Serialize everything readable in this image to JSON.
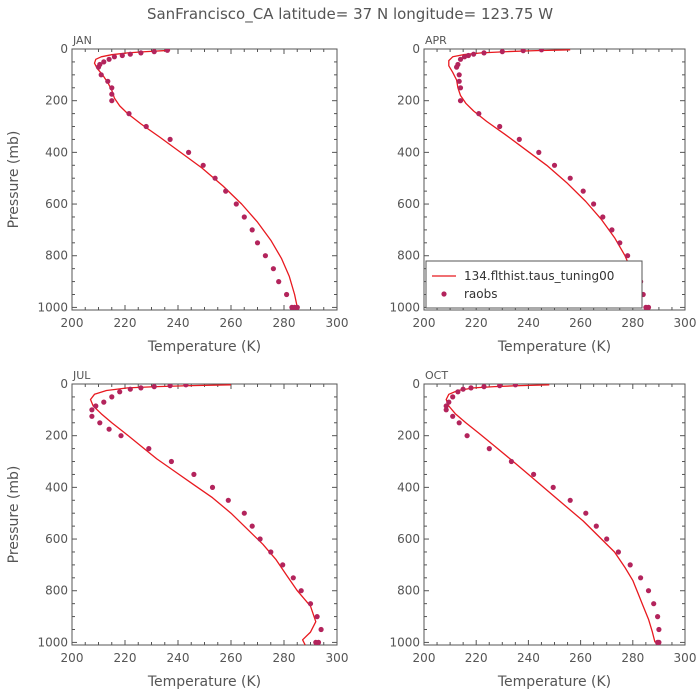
{
  "title": "SanFrancisco_CA  latitude= 37 N longitude= 123.75 W",
  "colors": {
    "model": "#e8191f",
    "obs": "#b3245c",
    "axis": "#555555"
  },
  "legend": {
    "model_label": "134.flthist.taus_tuning00",
    "obs_label": "raobs"
  },
  "chart_data": [
    {
      "type": "line",
      "panel_label": "JAN",
      "xlabel": "Temperature (K)",
      "ylabel": "Pressure (mb)",
      "xlim": [
        200,
        300
      ],
      "ylim": [
        1010,
        0
      ],
      "xticks": [
        200,
        220,
        240,
        260,
        280,
        300
      ],
      "yticks": [
        0,
        200,
        400,
        600,
        800,
        1000
      ],
      "series": [
        {
          "kind": "line",
          "x": [
            237,
            228,
            221,
            215,
            211,
            209,
            208.5,
            209.5,
            211.5,
            213.5,
            215,
            216,
            218,
            221,
            226,
            233,
            241,
            249,
            257,
            264,
            270,
            275,
            279,
            282,
            284,
            285
          ],
          "y": [
            5,
            10,
            15,
            22,
            30,
            40,
            55,
            75,
            100,
            130,
            160,
            190,
            220,
            250,
            290,
            340,
            400,
            460,
            530,
            600,
            670,
            740,
            810,
            880,
            950,
            1000
          ]
        },
        {
          "kind": "scatter",
          "x": [
            236,
            231,
            226,
            222,
            219,
            216,
            214,
            212,
            210.5,
            210,
            211,
            213.5,
            215,
            215,
            215,
            221.5,
            228,
            237,
            244,
            249.5,
            254,
            258,
            262,
            265,
            268,
            270,
            273,
            276,
            278,
            281,
            283,
            284,
            285
          ],
          "y": [
            5,
            10,
            15,
            20,
            25,
            30,
            40,
            50,
            60,
            70,
            100,
            125,
            150,
            175,
            200,
            250,
            300,
            350,
            400,
            450,
            500,
            550,
            600,
            650,
            700,
            750,
            800,
            850,
            900,
            950,
            1000,
            1000,
            1000
          ]
        }
      ]
    },
    {
      "type": "line",
      "panel_label": "APR",
      "xlabel": "Temperature (K)",
      "ylabel": "",
      "xlim": [
        200,
        300
      ],
      "ylim": [
        1010,
        0
      ],
      "xticks": [
        200,
        220,
        240,
        260,
        280,
        300
      ],
      "yticks": [
        0,
        200,
        400,
        600,
        800,
        1000
      ],
      "legend_position": "bottom-right",
      "series": [
        {
          "kind": "line",
          "x": [
            256,
            243,
            232,
            222,
            215,
            211,
            209.5,
            209.5,
            211,
            212.5,
            213,
            214,
            216,
            219,
            224,
            231,
            239,
            247,
            255,
            262,
            268,
            273,
            277,
            280,
            282,
            283
          ],
          "y": [
            3,
            6,
            10,
            15,
            22,
            30,
            45,
            65,
            90,
            120,
            150,
            180,
            210,
            240,
            280,
            330,
            390,
            450,
            520,
            590,
            660,
            730,
            800,
            870,
            940,
            1000
          ]
        },
        {
          "kind": "scatter",
          "x": [
            245,
            238,
            230,
            223,
            219,
            217,
            215.5,
            214,
            213,
            212.5,
            213.5,
            213.5,
            214,
            214,
            221,
            229,
            236.5,
            244,
            250,
            256,
            261,
            265,
            268.5,
            272,
            275,
            278,
            281,
            283,
            284,
            285,
            286
          ],
          "y": [
            3,
            6,
            10,
            15,
            20,
            25,
            30,
            40,
            60,
            70,
            100,
            125,
            150,
            200,
            250,
            300,
            350,
            400,
            450,
            500,
            550,
            600,
            650,
            700,
            750,
            800,
            850,
            900,
            950,
            1000,
            1000
          ]
        }
      ]
    },
    {
      "type": "line",
      "panel_label": "JUL",
      "xlabel": "Temperature (K)",
      "ylabel": "Pressure (mb)",
      "xlim": [
        200,
        300
      ],
      "ylim": [
        1010,
        0
      ],
      "xticks": [
        200,
        220,
        240,
        260,
        280,
        300
      ],
      "yticks": [
        0,
        200,
        400,
        600,
        800,
        1000
      ],
      "series": [
        {
          "kind": "line",
          "x": [
            260,
            245,
            232,
            221,
            213,
            208.5,
            207,
            208,
            211,
            215,
            220,
            226,
            232,
            239,
            246,
            253,
            260,
            266,
            272,
            277,
            281,
            285,
            290,
            292,
            290,
            287,
            288
          ],
          "y": [
            3,
            6,
            10,
            15,
            25,
            40,
            60,
            85,
            115,
            150,
            190,
            240,
            290,
            340,
            390,
            440,
            500,
            560,
            620,
            680,
            740,
            800,
            860,
            920,
            960,
            990,
            1010
          ]
        },
        {
          "kind": "scatter",
          "x": [
            243,
            237,
            231,
            226,
            222,
            218,
            215,
            212,
            209,
            207.5,
            207.5,
            210.5,
            214,
            218.5,
            229,
            237.5,
            246,
            253,
            259,
            265,
            268,
            271,
            275,
            279.5,
            283.5,
            286.5,
            290,
            292.5,
            294,
            293,
            292
          ],
          "y": [
            3,
            6,
            10,
            15,
            20,
            30,
            50,
            70,
            85,
            100,
            125,
            150,
            175,
            200,
            250,
            300,
            350,
            400,
            450,
            500,
            550,
            600,
            650,
            700,
            750,
            800,
            850,
            900,
            950,
            1000,
            1000
          ]
        }
      ]
    },
    {
      "type": "line",
      "panel_label": "OCT",
      "xlabel": "Temperature (K)",
      "ylabel": "",
      "xlim": [
        200,
        300
      ],
      "ylim": [
        1010,
        0
      ],
      "xticks": [
        200,
        220,
        240,
        260,
        280,
        300
      ],
      "yticks": [
        0,
        200,
        400,
        600,
        800,
        1000
      ],
      "series": [
        {
          "kind": "line",
          "x": [
            248,
            237,
            227,
            219,
            213,
            209.5,
            208.5,
            209.5,
            212,
            216,
            221,
            227,
            233,
            240,
            247,
            254,
            261,
            267,
            273,
            277,
            280,
            282,
            284,
            286,
            287.5,
            288.5
          ],
          "y": [
            3,
            6,
            10,
            15,
            25,
            40,
            60,
            85,
            115,
            150,
            190,
            240,
            290,
            350,
            410,
            470,
            530,
            590,
            650,
            710,
            760,
            810,
            860,
            910,
            960,
            1000
          ]
        },
        {
          "kind": "scatter",
          "x": [
            235,
            229,
            223,
            218,
            215,
            213,
            211,
            209.5,
            208.5,
            208.5,
            211,
            213.5,
            216.5,
            225,
            233.5,
            242,
            249.5,
            256,
            262,
            266,
            270,
            274.5,
            279,
            283,
            286,
            288,
            289.5,
            290,
            290,
            289.5
          ],
          "y": [
            3,
            6,
            10,
            15,
            20,
            30,
            50,
            70,
            85,
            100,
            125,
            150,
            200,
            250,
            300,
            350,
            400,
            450,
            500,
            550,
            600,
            650,
            700,
            750,
            800,
            850,
            900,
            950,
            1000,
            1000
          ]
        }
      ]
    }
  ]
}
